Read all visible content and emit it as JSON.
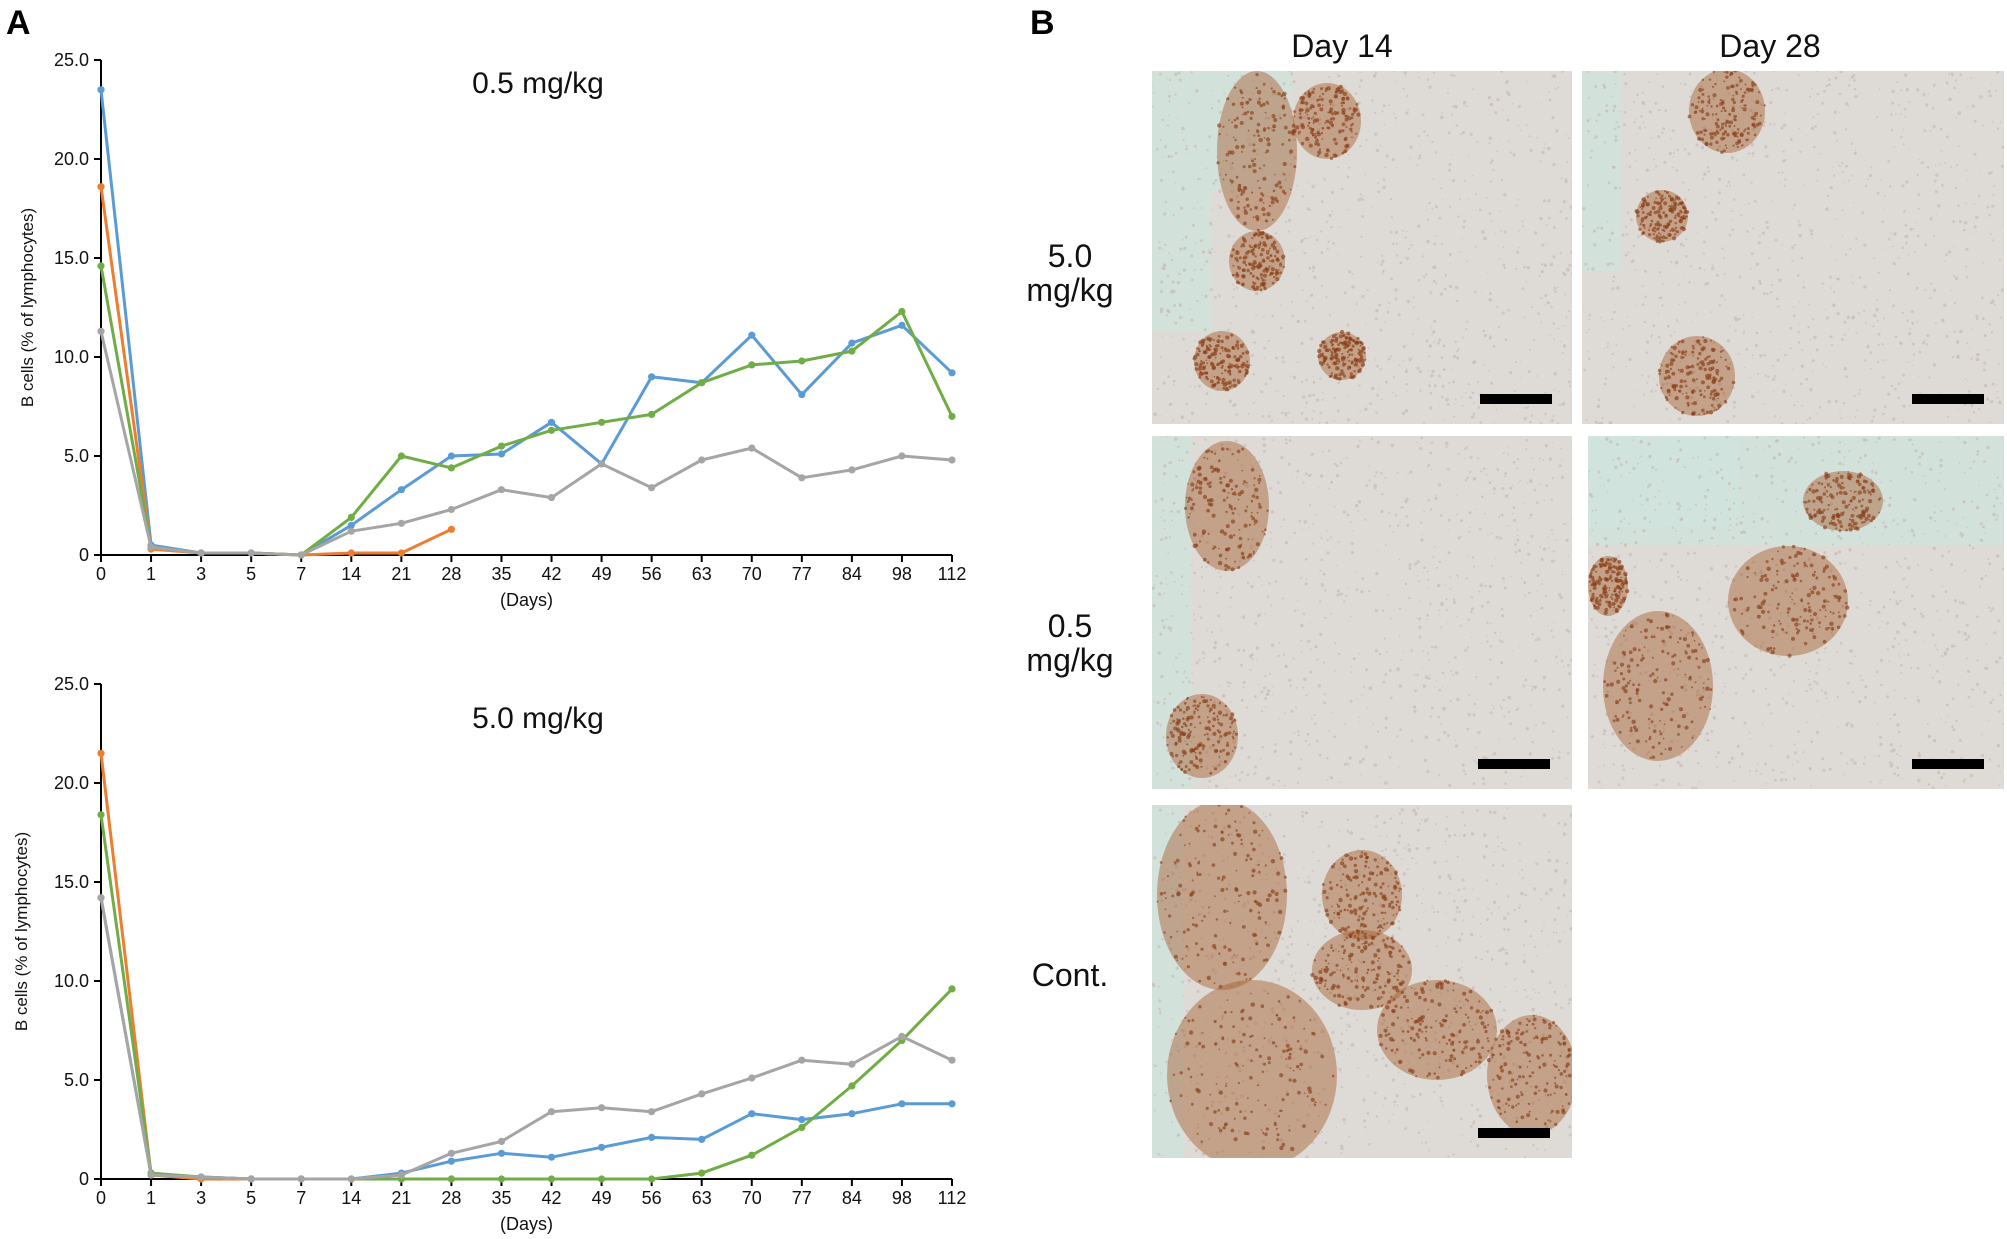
{
  "panel_a_letter": "A",
  "panel_b_letter": "B",
  "chart_data": [
    {
      "type": "line",
      "title": "0.5 mg/kg",
      "xlabel": "(Days)",
      "ylabel": "B cells (% of lymphocytes)",
      "categories": [
        "0",
        "1",
        "3",
        "5",
        "7",
        "14",
        "21",
        "28",
        "35",
        "42",
        "49",
        "56",
        "63",
        "70",
        "77",
        "84",
        "98",
        "112"
      ],
      "ylim": [
        0,
        25
      ],
      "yticks": [
        "0",
        "5.0",
        "10.0",
        "15.0",
        "20.0",
        "25.0"
      ],
      "series": [
        {
          "color": "#5b9bd5",
          "values": [
            23.5,
            0.5,
            0.1,
            0.1,
            0.0,
            1.5,
            3.3,
            5.0,
            5.1,
            6.7,
            4.6,
            9.0,
            8.7,
            11.1,
            8.1,
            10.7,
            11.6,
            9.2
          ]
        },
        {
          "color": "#ed7d31",
          "values": [
            18.6,
            0.3,
            0.1,
            0.1,
            0.0,
            0.1,
            0.1,
            1.3,
            null,
            null,
            null,
            null,
            null,
            null,
            null,
            null,
            null,
            null
          ]
        },
        {
          "color": "#70ad47",
          "values": [
            14.6,
            0.4,
            0.1,
            0.1,
            0.0,
            1.9,
            5.0,
            4.4,
            5.5,
            6.3,
            6.7,
            7.1,
            8.7,
            9.6,
            9.8,
            10.3,
            12.3,
            7.0
          ]
        },
        {
          "color": "#a5a5a5",
          "values": [
            11.3,
            0.4,
            0.1,
            0.1,
            0.0,
            1.2,
            1.6,
            2.3,
            3.3,
            2.9,
            4.6,
            3.4,
            4.8,
            5.4,
            3.9,
            4.3,
            5.0,
            4.8
          ]
        }
      ]
    },
    {
      "type": "line",
      "title": "5.0 mg/kg",
      "xlabel": "(Days)",
      "ylabel": "B cells (% of lymphocytes)",
      "categories": [
        "0",
        "1",
        "3",
        "5",
        "7",
        "14",
        "21",
        "28",
        "35",
        "42",
        "49",
        "56",
        "63",
        "70",
        "77",
        "84",
        "98",
        "112"
      ],
      "ylim": [
        0,
        25
      ],
      "yticks": [
        "0",
        "5.0",
        "10.0",
        "15.0",
        "20.0",
        "25.0"
      ],
      "series": [
        {
          "color": "#5b9bd5",
          "values": [
            14.2,
            0.2,
            0.1,
            0.0,
            0.0,
            0.0,
            0.3,
            0.9,
            1.3,
            1.1,
            1.6,
            2.1,
            2.0,
            3.3,
            3.0,
            3.3,
            3.8,
            3.8
          ]
        },
        {
          "color": "#ed7d31",
          "values": [
            21.5,
            0.2,
            0.0,
            0.0,
            0.0,
            0.0,
            0.0,
            0.0,
            null,
            null,
            null,
            null,
            null,
            null,
            null,
            null,
            null,
            null
          ]
        },
        {
          "color": "#70ad47",
          "values": [
            18.4,
            0.3,
            0.1,
            0.0,
            0.0,
            0.0,
            0.0,
            0.0,
            0.0,
            0.0,
            0.0,
            0.0,
            0.3,
            1.2,
            2.6,
            4.7,
            7.0,
            9.6
          ]
        },
        {
          "color": "#a5a5a5",
          "values": [
            14.2,
            0.2,
            0.1,
            0.0,
            0.0,
            0.0,
            0.2,
            1.3,
            1.9,
            3.4,
            3.6,
            3.4,
            4.3,
            5.1,
            6.0,
            5.8,
            7.2,
            6.0
          ]
        }
      ]
    }
  ],
  "micrographs": {
    "columns": [
      "Day 14",
      "Day 28"
    ],
    "rows": [
      {
        "label_line1": "5.0",
        "label_line2": "mg/kg"
      },
      {
        "label_line1": "0.5",
        "label_line2": "mg/kg"
      },
      {
        "label_line1": "Cont.",
        "label_line2": ""
      }
    ],
    "tile_bg": "#dedbd6",
    "stain_color": "#a45a2c",
    "edge_color": "#cfe3dc"
  }
}
